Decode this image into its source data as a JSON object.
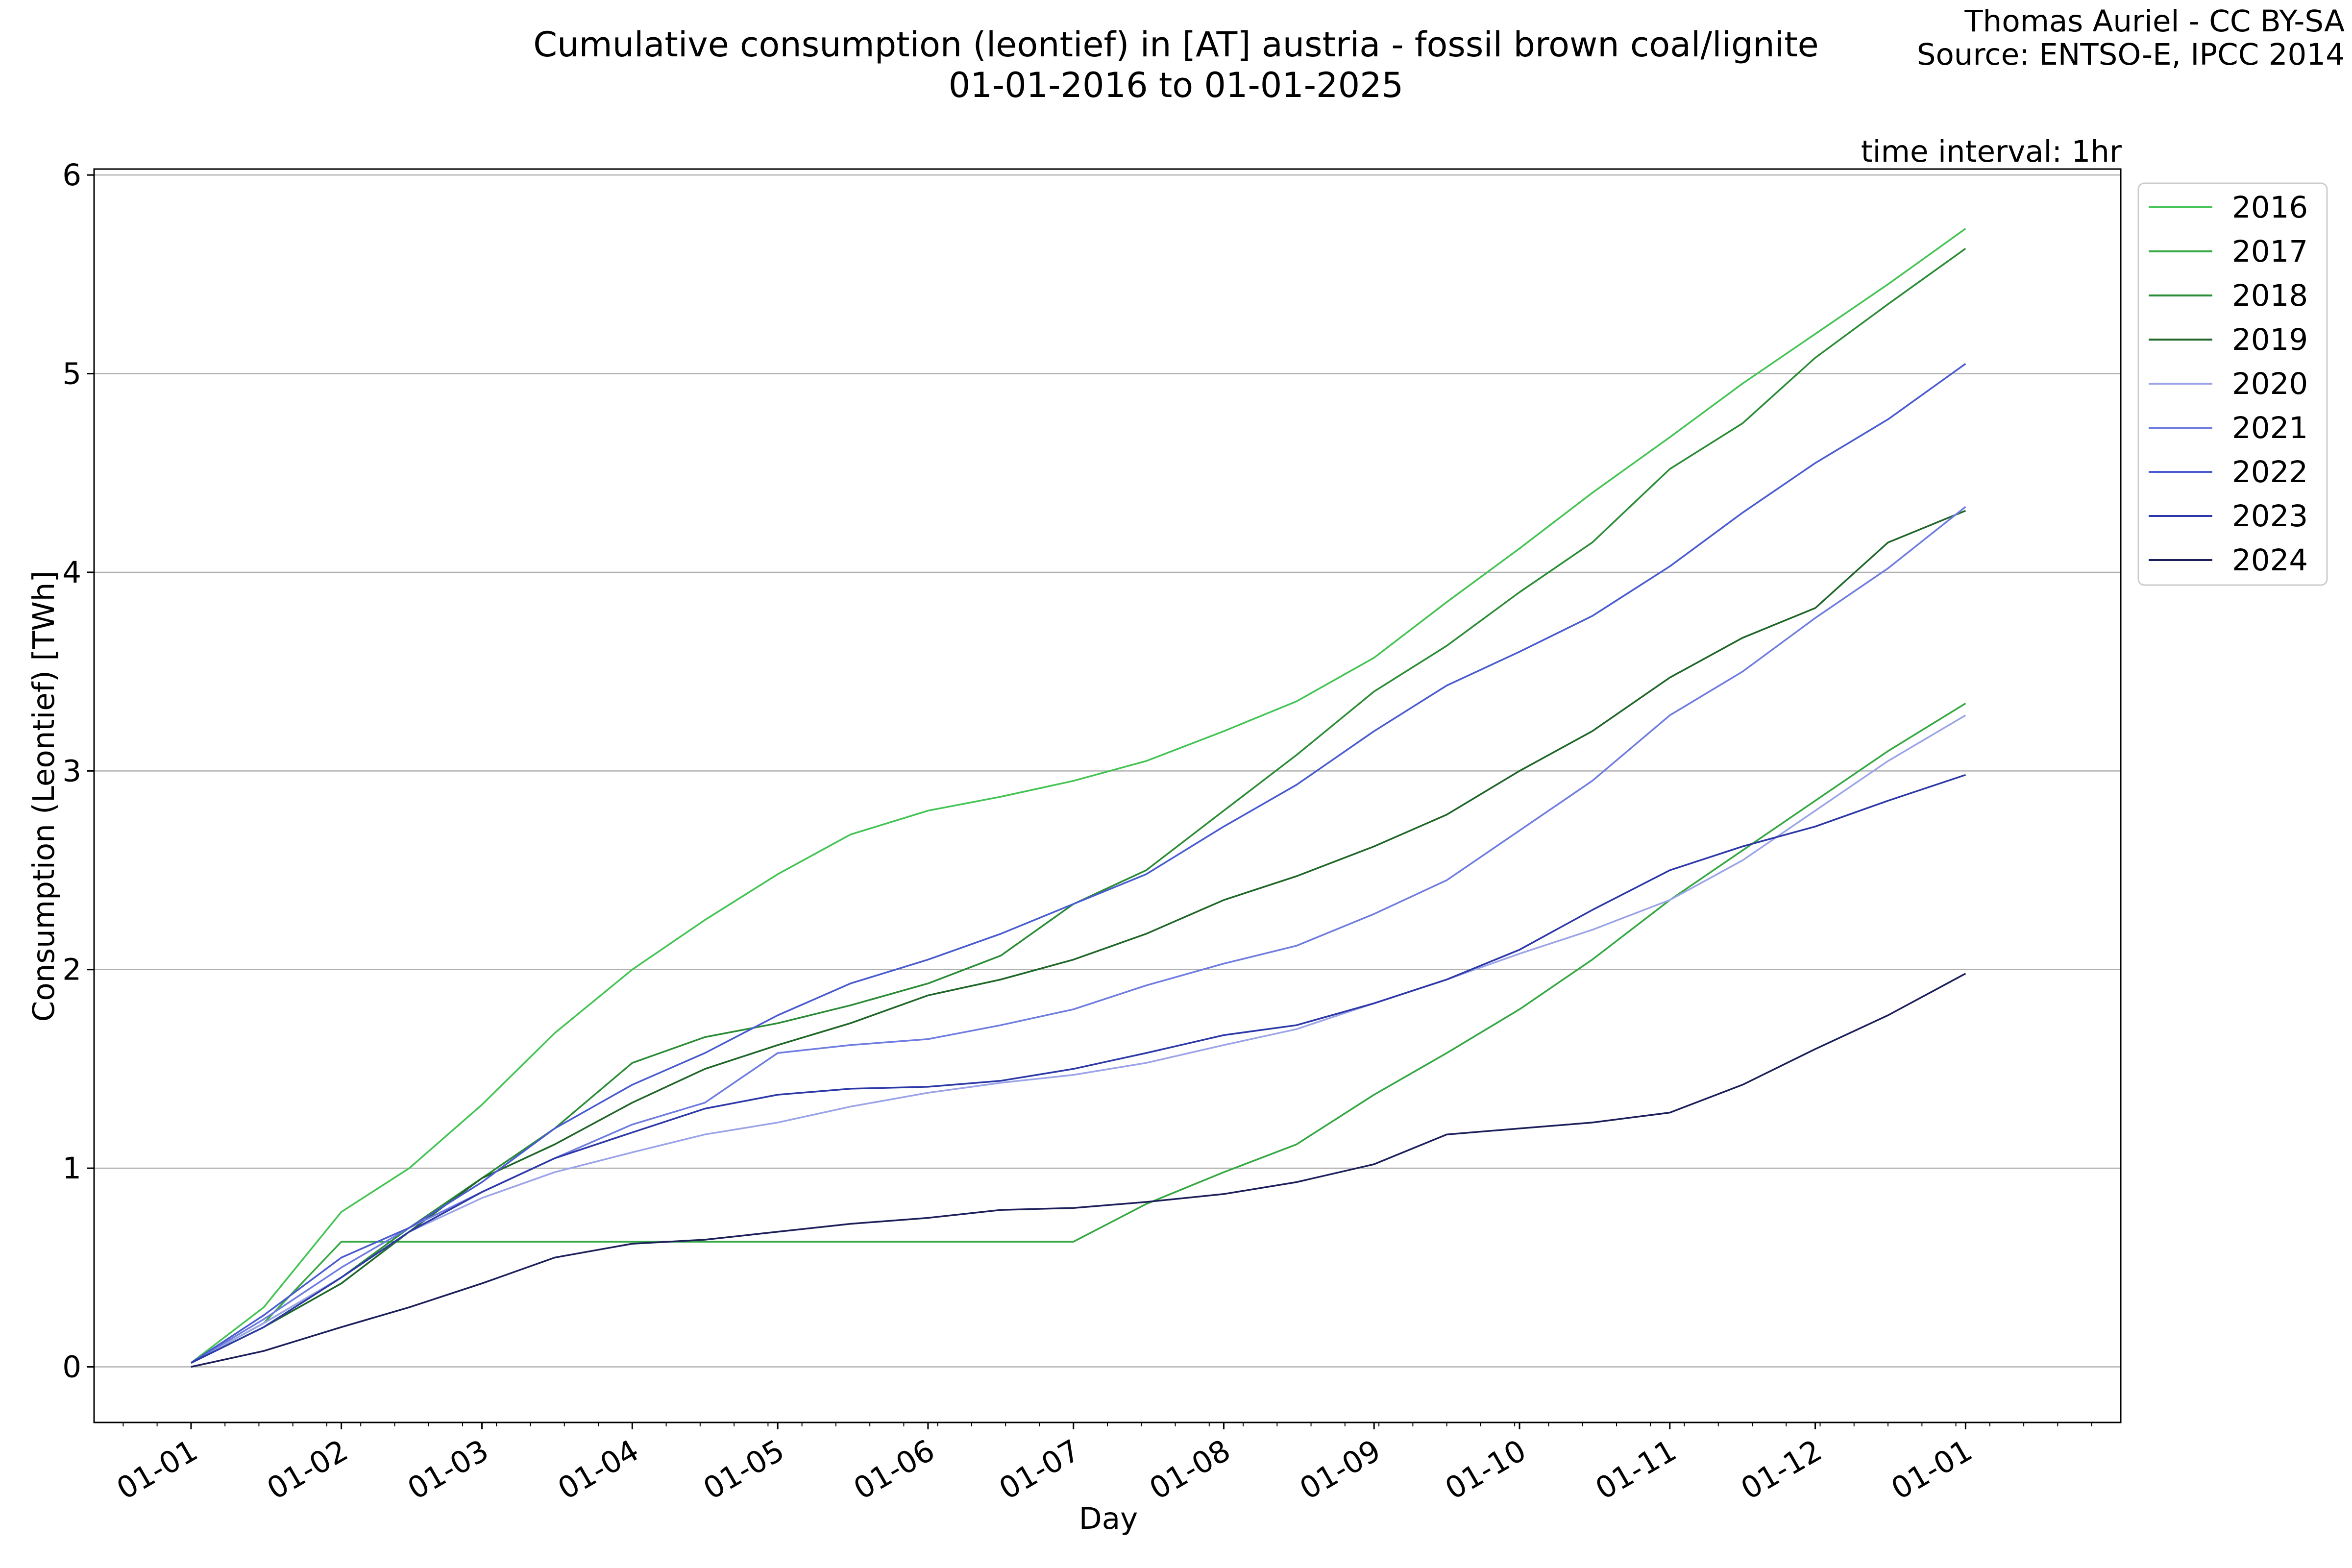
{
  "chart_data": {
    "type": "line",
    "title": "Cumulative consumption (leontief) in [AT] austria - fossil brown coal/lignite",
    "subtitle": "01-01-2016 to 01-01-2025",
    "credit": [
      "Thomas Auriel - CC BY-SA",
      "Source: ENTSO-E, IPCC 2014"
    ],
    "annotation": "time interval: 1hr",
    "xlabel": "Day",
    "ylabel": "Consumption (Leontief) [TWh]",
    "xlim": [
      -20,
      398
    ],
    "ylim": [
      -0.28,
      6.03
    ],
    "yticks": [
      0,
      1,
      2,
      3,
      4,
      5,
      6
    ],
    "xticks": [
      {
        "day": 0,
        "label": "01-01"
      },
      {
        "day": 31,
        "label": "01-02"
      },
      {
        "day": 60,
        "label": "01-03"
      },
      {
        "day": 91,
        "label": "01-04"
      },
      {
        "day": 121,
        "label": "01-05"
      },
      {
        "day": 152,
        "label": "01-06"
      },
      {
        "day": 182,
        "label": "01-07"
      },
      {
        "day": 213,
        "label": "01-08"
      },
      {
        "day": 244,
        "label": "01-09"
      },
      {
        "day": 274,
        "label": "01-10"
      },
      {
        "day": 305,
        "label": "01-11"
      },
      {
        "day": 335,
        "label": "01-12"
      },
      {
        "day": 366,
        "label": "01-01"
      }
    ],
    "grid": "horizontal",
    "legend_position": "outside top-right",
    "series": [
      {
        "name": "2016",
        "color": "#44c454",
        "points": [
          [
            0,
            0.02
          ],
          [
            15,
            0.3
          ],
          [
            31,
            0.78
          ],
          [
            45,
            1.0
          ],
          [
            60,
            1.32
          ],
          [
            75,
            1.68
          ],
          [
            91,
            2.0
          ],
          [
            106,
            2.25
          ],
          [
            121,
            2.48
          ],
          [
            136,
            2.68
          ],
          [
            152,
            2.8
          ],
          [
            167,
            2.87
          ],
          [
            182,
            2.95
          ],
          [
            197,
            3.05
          ],
          [
            213,
            3.2
          ],
          [
            228,
            3.35
          ],
          [
            244,
            3.57
          ],
          [
            259,
            3.85
          ],
          [
            274,
            4.12
          ],
          [
            289,
            4.4
          ],
          [
            305,
            4.68
          ],
          [
            320,
            4.95
          ],
          [
            335,
            5.2
          ],
          [
            350,
            5.45
          ],
          [
            366,
            5.73
          ]
        ]
      },
      {
        "name": "2017",
        "color": "#35a843",
        "points": [
          [
            0,
            0.02
          ],
          [
            15,
            0.22
          ],
          [
            31,
            0.63
          ],
          [
            45,
            0.63
          ],
          [
            60,
            0.63
          ],
          [
            91,
            0.63
          ],
          [
            121,
            0.63
          ],
          [
            152,
            0.63
          ],
          [
            182,
            0.63
          ],
          [
            197,
            0.82
          ],
          [
            213,
            0.98
          ],
          [
            228,
            1.12
          ],
          [
            244,
            1.37
          ],
          [
            259,
            1.58
          ],
          [
            274,
            1.8
          ],
          [
            289,
            2.05
          ],
          [
            305,
            2.35
          ],
          [
            320,
            2.6
          ],
          [
            335,
            2.85
          ],
          [
            350,
            3.1
          ],
          [
            366,
            3.34
          ]
        ]
      },
      {
        "name": "2018",
        "color": "#2a8c35",
        "points": [
          [
            0,
            0.02
          ],
          [
            15,
            0.22
          ],
          [
            31,
            0.45
          ],
          [
            45,
            0.7
          ],
          [
            60,
            0.95
          ],
          [
            75,
            1.2
          ],
          [
            91,
            1.53
          ],
          [
            106,
            1.66
          ],
          [
            121,
            1.73
          ],
          [
            136,
            1.82
          ],
          [
            152,
            1.93
          ],
          [
            167,
            2.07
          ],
          [
            182,
            2.33
          ],
          [
            197,
            2.5
          ],
          [
            213,
            2.8
          ],
          [
            228,
            3.08
          ],
          [
            244,
            3.4
          ],
          [
            259,
            3.63
          ],
          [
            274,
            3.9
          ],
          [
            289,
            4.15
          ],
          [
            305,
            4.52
          ],
          [
            320,
            4.75
          ],
          [
            335,
            5.08
          ],
          [
            350,
            5.35
          ],
          [
            366,
            5.63
          ]
        ]
      },
      {
        "name": "2019",
        "color": "#1f6628",
        "points": [
          [
            0,
            0.02
          ],
          [
            15,
            0.2
          ],
          [
            31,
            0.42
          ],
          [
            45,
            0.68
          ],
          [
            60,
            0.95
          ],
          [
            75,
            1.12
          ],
          [
            91,
            1.33
          ],
          [
            106,
            1.5
          ],
          [
            121,
            1.62
          ],
          [
            136,
            1.73
          ],
          [
            152,
            1.87
          ],
          [
            167,
            1.95
          ],
          [
            182,
            2.05
          ],
          [
            197,
            2.18
          ],
          [
            213,
            2.35
          ],
          [
            228,
            2.47
          ],
          [
            244,
            2.62
          ],
          [
            259,
            2.78
          ],
          [
            274,
            3.0
          ],
          [
            289,
            3.2
          ],
          [
            305,
            3.47
          ],
          [
            320,
            3.67
          ],
          [
            335,
            3.82
          ],
          [
            350,
            4.15
          ],
          [
            366,
            4.31
          ]
        ]
      },
      {
        "name": "2020",
        "color": "#9ca4e8",
        "points": [
          [
            0,
            0.02
          ],
          [
            15,
            0.22
          ],
          [
            31,
            0.45
          ],
          [
            45,
            0.68
          ],
          [
            60,
            0.85
          ],
          [
            75,
            0.98
          ],
          [
            91,
            1.08
          ],
          [
            106,
            1.17
          ],
          [
            121,
            1.23
          ],
          [
            136,
            1.31
          ],
          [
            152,
            1.38
          ],
          [
            167,
            1.43
          ],
          [
            182,
            1.47
          ],
          [
            197,
            1.53
          ],
          [
            213,
            1.62
          ],
          [
            228,
            1.7
          ],
          [
            244,
            1.83
          ],
          [
            259,
            1.95
          ],
          [
            274,
            2.08
          ],
          [
            289,
            2.2
          ],
          [
            305,
            2.35
          ],
          [
            320,
            2.55
          ],
          [
            335,
            2.8
          ],
          [
            350,
            3.05
          ],
          [
            366,
            3.28
          ]
        ]
      },
      {
        "name": "2021",
        "color": "#6f7ce0",
        "points": [
          [
            0,
            0.02
          ],
          [
            15,
            0.24
          ],
          [
            31,
            0.5
          ],
          [
            45,
            0.7
          ],
          [
            60,
            0.88
          ],
          [
            75,
            1.05
          ],
          [
            91,
            1.22
          ],
          [
            106,
            1.33
          ],
          [
            121,
            1.58
          ],
          [
            136,
            1.62
          ],
          [
            152,
            1.65
          ],
          [
            167,
            1.72
          ],
          [
            182,
            1.8
          ],
          [
            197,
            1.92
          ],
          [
            213,
            2.03
          ],
          [
            228,
            2.12
          ],
          [
            244,
            2.28
          ],
          [
            259,
            2.45
          ],
          [
            274,
            2.7
          ],
          [
            289,
            2.95
          ],
          [
            305,
            3.28
          ],
          [
            320,
            3.5
          ],
          [
            335,
            3.77
          ],
          [
            350,
            4.02
          ],
          [
            366,
            4.33
          ]
        ]
      },
      {
        "name": "2022",
        "color": "#4a5bd0",
        "points": [
          [
            0,
            0.02
          ],
          [
            15,
            0.26
          ],
          [
            31,
            0.55
          ],
          [
            45,
            0.7
          ],
          [
            60,
            0.93
          ],
          [
            75,
            1.2
          ],
          [
            91,
            1.42
          ],
          [
            106,
            1.58
          ],
          [
            121,
            1.77
          ],
          [
            136,
            1.93
          ],
          [
            152,
            2.05
          ],
          [
            167,
            2.18
          ],
          [
            182,
            2.33
          ],
          [
            197,
            2.48
          ],
          [
            213,
            2.72
          ],
          [
            228,
            2.93
          ],
          [
            244,
            3.2
          ],
          [
            259,
            3.43
          ],
          [
            274,
            3.6
          ],
          [
            289,
            3.78
          ],
          [
            305,
            4.03
          ],
          [
            320,
            4.3
          ],
          [
            335,
            4.55
          ],
          [
            350,
            4.77
          ],
          [
            366,
            5.05
          ]
        ]
      },
      {
        "name": "2023",
        "color": "#2c38a8",
        "points": [
          [
            0,
            0.02
          ],
          [
            15,
            0.2
          ],
          [
            31,
            0.45
          ],
          [
            45,
            0.68
          ],
          [
            60,
            0.88
          ],
          [
            75,
            1.05
          ],
          [
            91,
            1.18
          ],
          [
            106,
            1.3
          ],
          [
            121,
            1.37
          ],
          [
            136,
            1.4
          ],
          [
            152,
            1.41
          ],
          [
            167,
            1.44
          ],
          [
            182,
            1.5
          ],
          [
            197,
            1.58
          ],
          [
            213,
            1.67
          ],
          [
            228,
            1.72
          ],
          [
            244,
            1.83
          ],
          [
            259,
            1.95
          ],
          [
            274,
            2.1
          ],
          [
            289,
            2.3
          ],
          [
            305,
            2.5
          ],
          [
            320,
            2.62
          ],
          [
            335,
            2.72
          ],
          [
            350,
            2.85
          ],
          [
            366,
            2.98
          ]
        ]
      },
      {
        "name": "2024",
        "color": "#1c1f5a",
        "points": [
          [
            0,
            0.0
          ],
          [
            15,
            0.08
          ],
          [
            31,
            0.2
          ],
          [
            45,
            0.3
          ],
          [
            60,
            0.42
          ],
          [
            75,
            0.55
          ],
          [
            91,
            0.62
          ],
          [
            106,
            0.64
          ],
          [
            121,
            0.68
          ],
          [
            136,
            0.72
          ],
          [
            152,
            0.75
          ],
          [
            167,
            0.79
          ],
          [
            182,
            0.8
          ],
          [
            197,
            0.83
          ],
          [
            213,
            0.87
          ],
          [
            228,
            0.93
          ],
          [
            244,
            1.02
          ],
          [
            259,
            1.17
          ],
          [
            274,
            1.2
          ],
          [
            289,
            1.23
          ],
          [
            305,
            1.28
          ],
          [
            320,
            1.42
          ],
          [
            335,
            1.6
          ],
          [
            350,
            1.77
          ],
          [
            366,
            1.98
          ]
        ]
      }
    ]
  }
}
